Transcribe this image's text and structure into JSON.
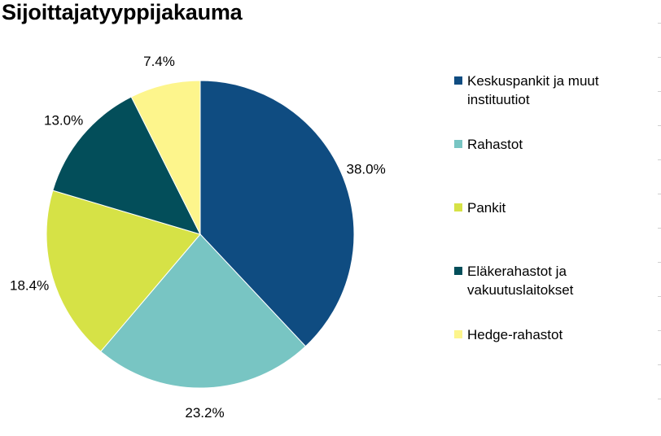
{
  "chart_data": {
    "type": "pie",
    "title": "Sijoittajatyyppijakauma",
    "legend_position": "right",
    "slices": [
      {
        "label": "Keskuspankit ja muut instituutiot",
        "label_lines": [
          "Keskuspankit ja muut",
          "instituutiot"
        ],
        "value": 38.0,
        "display": "38.0%",
        "color": "#0f4c81"
      },
      {
        "label": "Rahastot",
        "label_lines": [
          "Rahastot"
        ],
        "value": 23.2,
        "display": "23.2%",
        "color": "#78c5c3"
      },
      {
        "label": "Pankit",
        "label_lines": [
          "Pankit"
        ],
        "value": 18.4,
        "display": "18.4%",
        "color": "#d6e246"
      },
      {
        "label": "Eläkerahastot ja vakuutuslaitokset",
        "label_lines": [
          "Eläkerahastot ja",
          "vakuutuslaitokset"
        ],
        "value": 13.0,
        "display": "13.0%",
        "color": "#034e5a"
      },
      {
        "label": "Hedge-rahastot",
        "label_lines": [
          "Hedge-rahastot"
        ],
        "value": 7.4,
        "display": "7.4%",
        "color": "#fdf58c"
      }
    ]
  }
}
